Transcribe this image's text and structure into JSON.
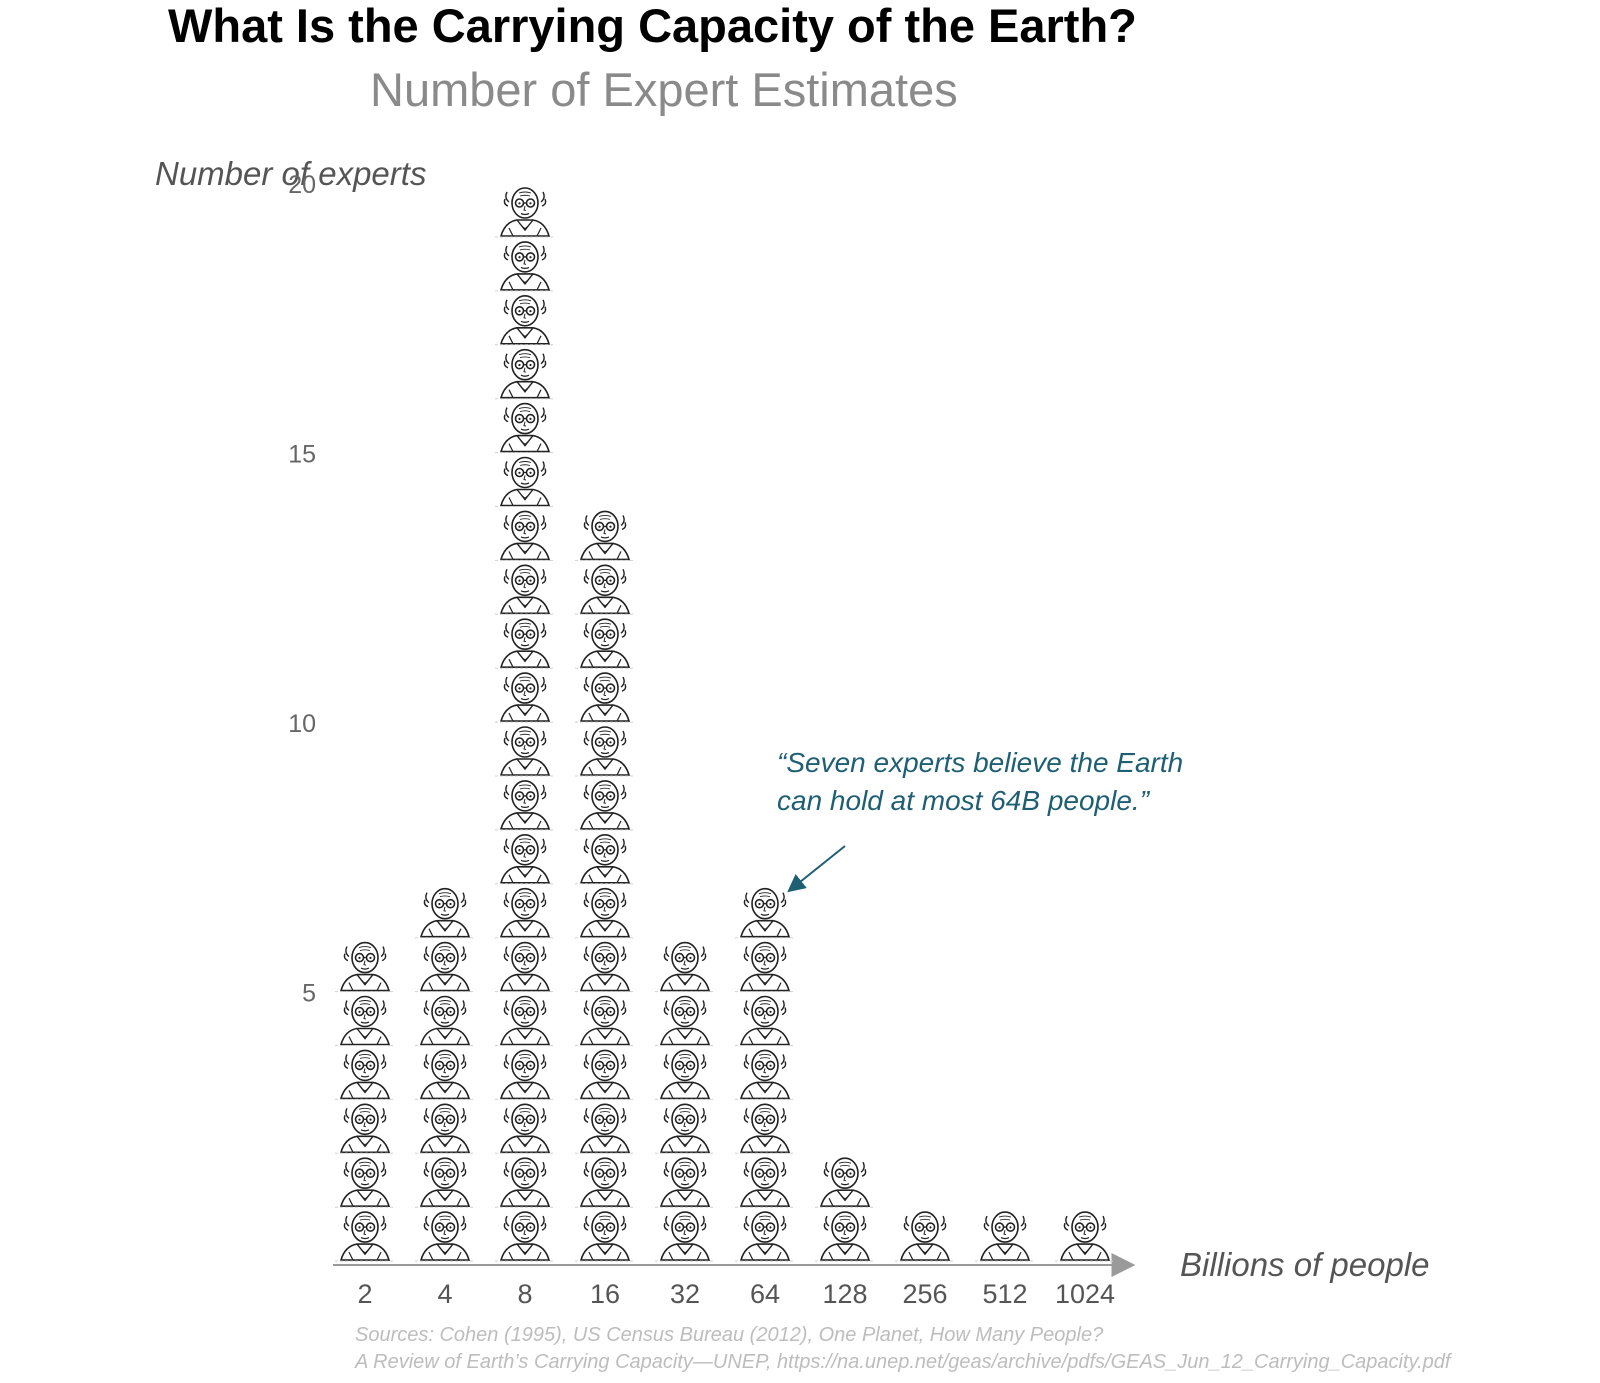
{
  "title": "What Is the Carrying Capacity of the Earth?",
  "subtitle": "Number of Expert Estimates",
  "chart_data": {
    "type": "bar",
    "mark": "stacked expert portrait icons (one icon per expert)",
    "ylabel": "Number of experts",
    "xlabel": "Billions of people",
    "categories": [
      "2",
      "4",
      "8",
      "16",
      "32",
      "64",
      "128",
      "256",
      "512",
      "1024"
    ],
    "values": [
      6,
      7,
      20,
      14,
      6,
      7,
      2,
      1,
      1,
      1
    ],
    "y_ticks": [
      "5",
      "10",
      "15",
      "20"
    ],
    "ylim": [
      0,
      20
    ],
    "grid": false,
    "annotation": {
      "line1": "“Seven experts believe the Earth",
      "line2": "can hold at most 64B people.”",
      "target_category": "64"
    }
  },
  "sources": {
    "line1": "Sources: Cohen (1995), US Census Bureau (2012), One Planet, How Many People?",
    "line2": "A Review of Earth’s Carrying Capacity—UNEP, https://na.unep.net/geas/archive/pdfs/GEAS_Jun_12_Carrying_Capacity.pdf"
  },
  "colors": {
    "title": "#000000",
    "subtitle": "#8a8a8a",
    "axis": "#999999",
    "annotation": "#1f5f74",
    "icon_ink": "#222222",
    "source": "#bdbdbd"
  }
}
